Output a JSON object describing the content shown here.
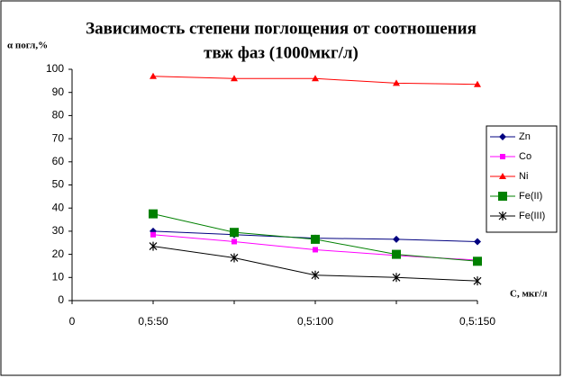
{
  "chart_data": {
    "type": "line",
    "title": [
      "Зависимость степени поглощения от соотношения",
      "твж фаз (1000мкг/л)"
    ],
    "y_label": "α погл,%",
    "x_label": "C, мкг/л",
    "categories": [
      "0",
      "0,5:50",
      null,
      "0,5:100",
      null,
      "0,5:150"
    ],
    "series": [
      {
        "name": "Zn",
        "color": "#000080",
        "marker": "diamond",
        "values": [
          null,
          30,
          28.5,
          27,
          26.5,
          25.5
        ]
      },
      {
        "name": "Co",
        "color": "#ff00ff",
        "marker": "square",
        "values": [
          null,
          28.5,
          25.5,
          22,
          19.5,
          17.5
        ]
      },
      {
        "name": "Ni",
        "color": "#ff0000",
        "marker": "triangle",
        "values": [
          null,
          97,
          96,
          96,
          94,
          93.5
        ]
      },
      {
        "name": "Fe(II)",
        "color": "#008000",
        "marker": "big-square",
        "values": [
          null,
          37.5,
          29.5,
          26.5,
          20,
          17
        ]
      },
      {
        "name": "Fe(III)",
        "color": "#000000",
        "marker": "star",
        "values": [
          null,
          23.5,
          18.5,
          11,
          10,
          8.5
        ]
      }
    ],
    "ylim": [
      0,
      100
    ],
    "yticks": [
      0,
      10,
      20,
      30,
      40,
      50,
      60,
      70,
      80,
      90,
      100
    ],
    "grid": false,
    "legend": "right"
  }
}
